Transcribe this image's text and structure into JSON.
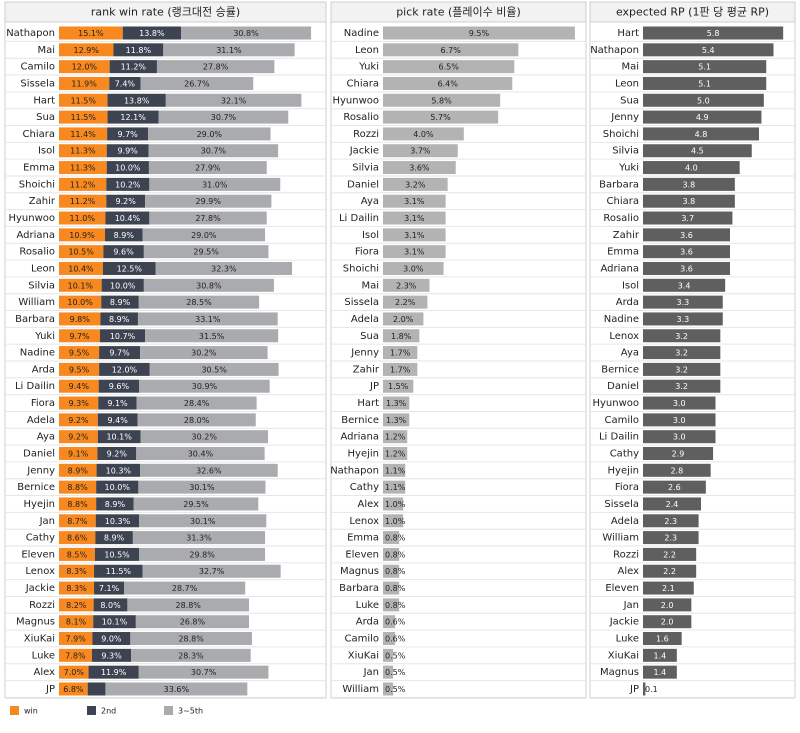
{
  "chart_data": [
    {
      "type": "bar",
      "orientation": "horizontal",
      "stacked": true,
      "title": "rank win rate (랭크대전 승률)",
      "categories": [
        "Nathapon",
        "Mai",
        "Camilo",
        "Sissela",
        "Hart",
        "Sua",
        "Chiara",
        "Isol",
        "Emma",
        "Shoichi",
        "Zahir",
        "Hyunwoo",
        "Adriana",
        "Rosalio",
        "Leon",
        "Silvia",
        "William",
        "Barbara",
        "Yuki",
        "Nadine",
        "Arda",
        "Li Dailin",
        "Fiora",
        "Adela",
        "Aya",
        "Daniel",
        "Jenny",
        "Bernice",
        "Hyejin",
        "Jan",
        "Cathy",
        "Eleven",
        "Lenox",
        "Jackie",
        "Rozzi",
        "Magnus",
        "XiuKai",
        "Luke",
        "Alex",
        "JP"
      ],
      "series": [
        {
          "name": "win",
          "color": "#f7891e",
          "values": [
            15.1,
            12.9,
            12.0,
            11.9,
            11.5,
            11.5,
            11.4,
            11.3,
            11.3,
            11.2,
            11.2,
            11.0,
            10.9,
            10.5,
            10.4,
            10.1,
            10.0,
            9.8,
            9.7,
            9.5,
            9.5,
            9.4,
            9.3,
            9.2,
            9.2,
            9.1,
            8.9,
            8.8,
            8.8,
            8.7,
            8.6,
            8.5,
            8.3,
            8.3,
            8.2,
            8.1,
            7.9,
            7.8,
            7.0,
            6.8
          ],
          "value_labels": [
            "15.1%",
            "12.9%",
            "12.0%",
            "11.9%",
            "11.5%",
            "11.5%",
            "11.4%",
            "11.3%",
            "11.3%",
            "11.2%",
            "11.2%",
            "11.0%",
            "10.9%",
            "10.5%",
            "10.4%",
            "10.1%",
            "10.0%",
            "9.8%",
            "9.7%",
            "9.5%",
            "9.5%",
            "9.4%",
            "9.3%",
            "9.2%",
            "9.2%",
            "9.1%",
            "8.9%",
            "8.8%",
            "8.8%",
            "8.7%",
            "8.6%",
            "8.5%",
            "8.3%",
            "8.3%",
            "8.2%",
            "8.1%",
            "7.9%",
            "7.8%",
            "7.0%",
            "6.8%"
          ]
        },
        {
          "name": "2nd",
          "color": "#3d4350",
          "values": [
            13.8,
            11.8,
            11.2,
            7.4,
            13.8,
            12.1,
            9.7,
            9.9,
            10.0,
            10.2,
            9.2,
            10.4,
            8.9,
            9.6,
            12.5,
            10.0,
            8.9,
            8.9,
            10.7,
            9.7,
            12.0,
            9.6,
            9.1,
            9.4,
            10.1,
            9.2,
            10.3,
            10.0,
            8.9,
            10.3,
            8.9,
            10.5,
            11.5,
            7.1,
            8.0,
            10.1,
            9.0,
            9.3,
            11.9,
            4.2
          ],
          "value_labels": [
            "13.8%",
            "11.8%",
            "11.2%",
            "7.4%",
            "13.8%",
            "12.1%",
            "9.7%",
            "9.9%",
            "10.0%",
            "10.2%",
            "9.2%",
            "10.4%",
            "8.9%",
            "9.6%",
            "12.5%",
            "10.0%",
            "8.9%",
            "8.9%",
            "10.7%",
            "9.7%",
            "12.0%",
            "9.6%",
            "9.1%",
            "9.4%",
            "10.1%",
            "9.2%",
            "10.3%",
            "10.0%",
            "8.9%",
            "10.3%",
            "8.9%",
            "10.5%",
            "11.5%",
            "7.1%",
            "8.0%",
            "10.1%",
            "9.0%",
            "9.3%",
            "11.9%",
            null
          ]
        },
        {
          "name": "3~5th",
          "color": "#a9abaf",
          "values": [
            30.8,
            31.1,
            27.8,
            26.7,
            32.1,
            30.7,
            29.0,
            30.7,
            27.9,
            31.0,
            29.9,
            27.8,
            29.0,
            29.5,
            32.3,
            30.8,
            28.5,
            33.1,
            31.5,
            30.2,
            30.5,
            30.9,
            28.4,
            28.0,
            30.2,
            30.4,
            32.6,
            30.1,
            29.5,
            30.1,
            31.3,
            29.8,
            32.7,
            28.7,
            28.8,
            26.8,
            28.8,
            28.3,
            30.7,
            33.6
          ],
          "value_labels": [
            "30.8%",
            "31.1%",
            "27.8%",
            "26.7%",
            "32.1%",
            "30.7%",
            "29.0%",
            "30.7%",
            "27.9%",
            "31.0%",
            "29.9%",
            "27.8%",
            "29.0%",
            "29.5%",
            "32.3%",
            "30.8%",
            "28.5%",
            "33.1%",
            "31.5%",
            "30.2%",
            "30.5%",
            "30.9%",
            "28.4%",
            "28.0%",
            "30.2%",
            "30.4%",
            "32.6%",
            "30.1%",
            "29.5%",
            "30.1%",
            "31.3%",
            "29.8%",
            "32.7%",
            "28.7%",
            "28.8%",
            "26.8%",
            "28.8%",
            "28.3%",
            "30.7%",
            "33.6%"
          ]
        }
      ],
      "xlim": [
        0,
        63
      ],
      "legend": "bottom-left"
    },
    {
      "type": "bar",
      "orientation": "horizontal",
      "title": "pick rate (플레이수 비율)",
      "categories": [
        "Nadine",
        "Leon",
        "Yuki",
        "Chiara",
        "Hyunwoo",
        "Rosalio",
        "Rozzi",
        "Jackie",
        "Silvia",
        "Daniel",
        "Aya",
        "Li Dailin",
        "Isol",
        "Fiora",
        "Shoichi",
        "Mai",
        "Sissela",
        "Adela",
        "Sua",
        "Jenny",
        "Zahir",
        "JP",
        "Hart",
        "Bernice",
        "Adriana",
        "Hyejin",
        "Nathapon",
        "Cathy",
        "Alex",
        "Lenox",
        "Emma",
        "Eleven",
        "Magnus",
        "Barbara",
        "Luke",
        "Arda",
        "Camilo",
        "XiuKai",
        "Jan",
        "William"
      ],
      "values": [
        9.5,
        6.7,
        6.5,
        6.4,
        5.8,
        5.7,
        4.0,
        3.7,
        3.6,
        3.2,
        3.1,
        3.1,
        3.1,
        3.1,
        3.0,
        2.3,
        2.2,
        2.0,
        1.8,
        1.7,
        1.7,
        1.5,
        1.3,
        1.3,
        1.2,
        1.2,
        1.1,
        1.1,
        1.0,
        1.0,
        0.8,
        0.8,
        0.8,
        0.8,
        0.8,
        0.6,
        0.6,
        0.5,
        0.5,
        0.5
      ],
      "value_labels": [
        "9.5%",
        "6.7%",
        "6.5%",
        "6.4%",
        "5.8%",
        "5.7%",
        "4.0%",
        "3.7%",
        "3.6%",
        "3.2%",
        "3.1%",
        "3.1%",
        "3.1%",
        "3.1%",
        "3.0%",
        "2.3%",
        "2.2%",
        "2.0%",
        "1.8%",
        "1.7%",
        "1.7%",
        "1.5%",
        "1.3%",
        "1.3%",
        "1.2%",
        "1.2%",
        "1.1%",
        "1.1%",
        "1.0%",
        "1.0%",
        "0.8%",
        "0.8%",
        "0.8%",
        "0.8%",
        "0.8%",
        "0.6%",
        "0.6%",
        "0.5%",
        "0.5%",
        "0.5%"
      ],
      "color": "#b3b3b3",
      "xlim": [
        0,
        10
      ]
    },
    {
      "type": "bar",
      "orientation": "horizontal",
      "title": "expected RP (1판 당 평균 RP)",
      "categories": [
        "Hart",
        "Nathapon",
        "Mai",
        "Leon",
        "Sua",
        "Jenny",
        "Shoichi",
        "Silvia",
        "Yuki",
        "Barbara",
        "Chiara",
        "Rosalio",
        "Zahir",
        "Emma",
        "Adriana",
        "Isol",
        "Arda",
        "Nadine",
        "Lenox",
        "Aya",
        "Bernice",
        "Daniel",
        "Hyunwoo",
        "Camilo",
        "Li Dailin",
        "Cathy",
        "Hyejin",
        "Fiora",
        "Sissela",
        "Adela",
        "William",
        "Rozzi",
        "Alex",
        "Eleven",
        "Jan",
        "Jackie",
        "Luke",
        "XiuKai",
        "Magnus",
        "JP"
      ],
      "values": [
        5.8,
        5.4,
        5.1,
        5.1,
        5.0,
        4.9,
        4.8,
        4.5,
        4.0,
        3.8,
        3.8,
        3.7,
        3.6,
        3.6,
        3.6,
        3.4,
        3.3,
        3.3,
        3.2,
        3.2,
        3.2,
        3.2,
        3.0,
        3.0,
        3.0,
        2.9,
        2.8,
        2.6,
        2.4,
        2.3,
        2.3,
        2.2,
        2.2,
        2.1,
        2.0,
        2.0,
        1.6,
        1.4,
        1.4,
        0.1
      ],
      "value_labels": [
        "5.8",
        "5.4",
        "5.1",
        "5.1",
        "5.0",
        "4.9",
        "4.8",
        "4.5",
        "4.0",
        "3.8",
        "3.8",
        "3.7",
        "3.6",
        "3.6",
        "3.6",
        "3.4",
        "3.3",
        "3.3",
        "3.2",
        "3.2",
        "3.2",
        "3.2",
        "3.0",
        "3.0",
        "3.0",
        "2.9",
        "2.8",
        "2.6",
        "2.4",
        "2.3",
        "2.3",
        "2.2",
        "2.2",
        "2.1",
        "2.0",
        "2.0",
        "1.6",
        "1.4",
        "1.4",
        "0.1"
      ],
      "color": "#5f5f5f",
      "xlim": [
        0,
        6
      ]
    }
  ]
}
